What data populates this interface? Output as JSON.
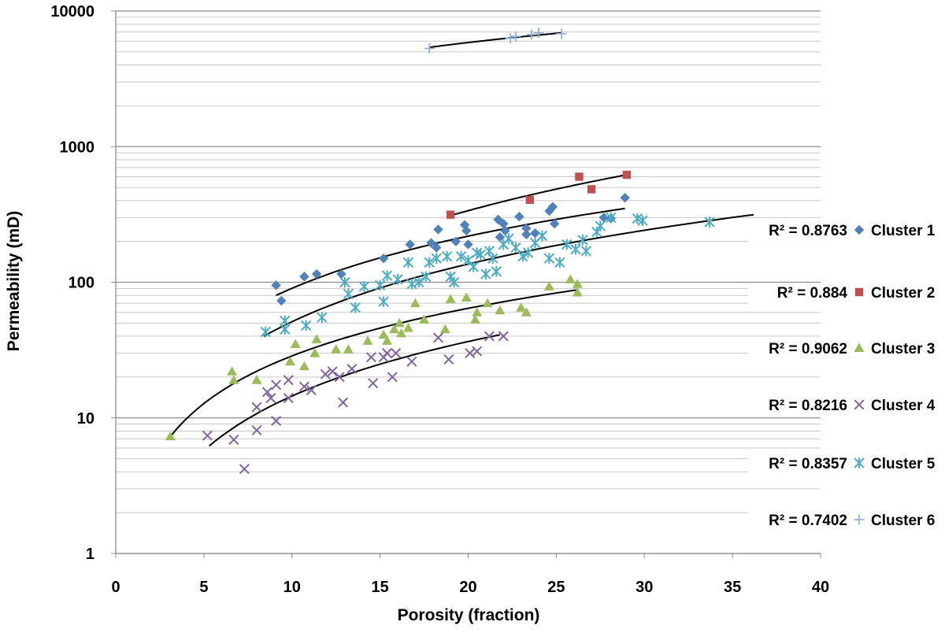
{
  "chart_data": {
    "type": "scatter",
    "title": "",
    "xlabel": "Porosity (fraction)",
    "ylabel": "Permeability (mD)",
    "xlim": [
      0,
      40
    ],
    "ylim": [
      1,
      10000
    ],
    "yscale": "log",
    "x_ticks": [
      "0",
      "5",
      "10",
      "15",
      "20",
      "25",
      "30",
      "35",
      "40"
    ],
    "y_ticks": [
      "1",
      "10",
      "100",
      "1000",
      "10000"
    ],
    "grid": {
      "major_y": true,
      "minor_y": true,
      "vertical": false
    },
    "legend_position": "right",
    "series": [
      {
        "name": "Cluster 1",
        "r2_label": "R² = 0.8763",
        "marker": "diamond",
        "color": "#4F81BD",
        "points": [
          [
            9.1,
            95
          ],
          [
            9.4,
            73
          ],
          [
            10.7,
            110
          ],
          [
            11.4,
            115
          ],
          [
            12.8,
            115
          ],
          [
            15.2,
            150
          ],
          [
            16.7,
            190
          ],
          [
            17.9,
            195
          ],
          [
            18.2,
            180
          ],
          [
            18.3,
            245
          ],
          [
            19.3,
            200
          ],
          [
            19.8,
            265
          ],
          [
            19.9,
            240
          ],
          [
            20.0,
            190
          ],
          [
            21.7,
            290
          ],
          [
            21.8,
            215
          ],
          [
            22.0,
            270
          ],
          [
            22.1,
            240
          ],
          [
            22.9,
            305
          ],
          [
            23.3,
            250
          ],
          [
            23.3,
            225
          ],
          [
            23.8,
            230
          ],
          [
            24.6,
            335
          ],
          [
            24.8,
            360
          ],
          [
            24.9,
            270
          ],
          [
            27.7,
            300
          ],
          [
            28.1,
            295
          ],
          [
            28.9,
            420
          ]
        ],
        "trend": {
          "x_start": 9.1,
          "x_end": 28.9,
          "y_start": 80,
          "y_end": 350
        }
      },
      {
        "name": "Cluster 2",
        "r2_label": "R² = 0.884",
        "marker": "square",
        "color": "#C0504D",
        "points": [
          [
            19.0,
            315
          ],
          [
            23.5,
            405
          ],
          [
            26.3,
            600
          ],
          [
            27.0,
            485
          ],
          [
            29.0,
            620
          ]
        ],
        "trend": {
          "x_start": 19.0,
          "x_end": 29.0,
          "y_start": 310,
          "y_end": 620
        }
      },
      {
        "name": "Cluster 3",
        "r2_label": "R² = 0.9062",
        "marker": "triangle",
        "color": "#9BBB59",
        "points": [
          [
            3.1,
            7.3
          ],
          [
            6.6,
            22
          ],
          [
            6.7,
            19
          ],
          [
            8.0,
            19
          ],
          [
            9.9,
            26
          ],
          [
            10.2,
            35
          ],
          [
            10.7,
            24
          ],
          [
            11.3,
            30
          ],
          [
            11.4,
            38
          ],
          [
            12.5,
            32
          ],
          [
            13.2,
            32
          ],
          [
            14.3,
            37
          ],
          [
            15.2,
            41
          ],
          [
            15.4,
            37
          ],
          [
            15.8,
            45
          ],
          [
            16.1,
            50
          ],
          [
            16.2,
            42
          ],
          [
            16.6,
            46
          ],
          [
            17.0,
            70
          ],
          [
            17.5,
            53
          ],
          [
            18.7,
            45
          ],
          [
            19.0,
            75
          ],
          [
            19.9,
            77
          ],
          [
            20.4,
            53
          ],
          [
            20.5,
            60
          ],
          [
            21.1,
            70
          ],
          [
            21.8,
            62
          ],
          [
            23.0,
            65
          ],
          [
            23.3,
            60
          ],
          [
            24.6,
            93
          ],
          [
            25.8,
            105
          ],
          [
            26.2,
            97
          ],
          [
            26.2,
            84
          ]
        ],
        "trend": {
          "x_start": 3.1,
          "x_end": 26.2,
          "y_start": 7.3,
          "y_end": 88
        }
      },
      {
        "name": "Cluster 4",
        "r2_label": "R² = 0.8216",
        "marker": "x",
        "color": "#8064A2",
        "points": [
          [
            5.2,
            7.4
          ],
          [
            6.7,
            6.9
          ],
          [
            7.3,
            4.2
          ],
          [
            8.0,
            8.1
          ],
          [
            8.0,
            12
          ],
          [
            8.6,
            15.5
          ],
          [
            8.8,
            14
          ],
          [
            9.1,
            17.5
          ],
          [
            9.1,
            9.5
          ],
          [
            9.8,
            19
          ],
          [
            9.8,
            14
          ],
          [
            10.7,
            17
          ],
          [
            11.1,
            16
          ],
          [
            11.9,
            21
          ],
          [
            12.3,
            22
          ],
          [
            12.7,
            20
          ],
          [
            12.9,
            13
          ],
          [
            13.4,
            23
          ],
          [
            14.5,
            28
          ],
          [
            14.6,
            18
          ],
          [
            15.2,
            28
          ],
          [
            15.4,
            30
          ],
          [
            15.7,
            20
          ],
          [
            15.9,
            30
          ],
          [
            16.8,
            26
          ],
          [
            18.3,
            39
          ],
          [
            18.9,
            27
          ],
          [
            20.1,
            30
          ],
          [
            20.5,
            31
          ],
          [
            21.2,
            40
          ],
          [
            22.0,
            40
          ]
        ],
        "trend": {
          "x_start": 5.3,
          "x_end": 21.8,
          "y_start": 6.2,
          "y_end": 41
        }
      },
      {
        "name": "Cluster 5",
        "r2_label": "R² = 0.8357",
        "marker": "asterisk",
        "color": "#4BACC6",
        "points": [
          [
            8.5,
            43
          ],
          [
            9.6,
            52
          ],
          [
            9.6,
            45
          ],
          [
            10.8,
            48
          ],
          [
            11.7,
            55
          ],
          [
            13.0,
            100
          ],
          [
            13.2,
            82
          ],
          [
            13.6,
            65
          ],
          [
            14.1,
            93
          ],
          [
            15.0,
            95
          ],
          [
            15.2,
            72
          ],
          [
            15.4,
            112
          ],
          [
            16.0,
            105
          ],
          [
            16.6,
            140
          ],
          [
            16.8,
            97
          ],
          [
            17.2,
            100
          ],
          [
            17.6,
            110
          ],
          [
            17.8,
            140
          ],
          [
            18.2,
            150
          ],
          [
            18.8,
            155
          ],
          [
            19.0,
            110
          ],
          [
            19.2,
            100
          ],
          [
            19.6,
            155
          ],
          [
            20.0,
            145
          ],
          [
            20.3,
            130
          ],
          [
            20.5,
            165
          ],
          [
            20.7,
            160
          ],
          [
            21.0,
            115
          ],
          [
            21.2,
            170
          ],
          [
            21.4,
            150
          ],
          [
            21.6,
            120
          ],
          [
            22.0,
            190
          ],
          [
            22.3,
            210
          ],
          [
            22.7,
            180
          ],
          [
            23.1,
            155
          ],
          [
            23.4,
            165
          ],
          [
            23.8,
            195
          ],
          [
            24.2,
            220
          ],
          [
            24.6,
            150
          ],
          [
            25.2,
            140
          ],
          [
            25.6,
            190
          ],
          [
            26.1,
            175
          ],
          [
            26.5,
            205
          ],
          [
            26.7,
            170
          ],
          [
            27.3,
            235
          ],
          [
            27.5,
            260
          ],
          [
            28.1,
            300
          ],
          [
            29.6,
            295
          ],
          [
            29.9,
            285
          ],
          [
            33.7,
            278
          ]
        ],
        "trend": {
          "x_start": 8.4,
          "x_end": 36.2,
          "y_start": 40,
          "y_end": 315
        }
      },
      {
        "name": "Cluster 6",
        "r2_label": "R² = 0.7402",
        "marker": "plus",
        "color": "#95B3D7",
        "points": [
          [
            17.8,
            5300
          ],
          [
            22.4,
            6300
          ],
          [
            22.7,
            6500
          ],
          [
            23.6,
            6700
          ],
          [
            24.0,
            6900
          ],
          [
            25.3,
            6800
          ]
        ],
        "trend": {
          "x_start": 17.8,
          "x_end": 25.3,
          "y_start": 5400,
          "y_end": 6900
        }
      }
    ]
  }
}
